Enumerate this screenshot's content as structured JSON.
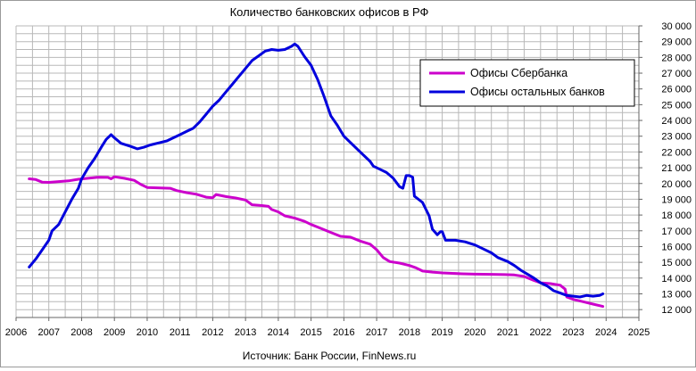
{
  "chart_data": {
    "type": "line",
    "title": "Количество банковских офисов в РФ",
    "source": "Источник: Банк России, FinNews.ru",
    "x_ticks": [
      "2006",
      "2007",
      "2008",
      "2009",
      "2010",
      "2011",
      "2012",
      "2013",
      "2014",
      "2015",
      "2016",
      "2017",
      "2018",
      "2019",
      "2020",
      "2021",
      "2022",
      "2023",
      "2024",
      "2025"
    ],
    "y_ticks": [
      "12 000",
      "13 000",
      "14 000",
      "15 000",
      "16 000",
      "17 000",
      "18 000",
      "19 000",
      "20 000",
      "21 000",
      "22 000",
      "23 000",
      "24 000",
      "25 000",
      "26 000",
      "27 000",
      "28 000",
      "29 000",
      "30 000"
    ],
    "xlim": [
      2006,
      2025
    ],
    "ylim": [
      11500,
      30000
    ],
    "grid": true,
    "legend_position": "top-right",
    "series": [
      {
        "name": "Офисы Сбербанка",
        "color": "#cc00cc",
        "points": [
          [
            2006.4,
            20300
          ],
          [
            2006.6,
            20250
          ],
          [
            2006.8,
            20080
          ],
          [
            2007.0,
            20070
          ],
          [
            2007.3,
            20120
          ],
          [
            2007.6,
            20170
          ],
          [
            2007.9,
            20270
          ],
          [
            2008.2,
            20330
          ],
          [
            2008.5,
            20400
          ],
          [
            2008.8,
            20390
          ],
          [
            2008.9,
            20300
          ],
          [
            2009.0,
            20430
          ],
          [
            2009.3,
            20330
          ],
          [
            2009.6,
            20200
          ],
          [
            2009.8,
            19950
          ],
          [
            2010.0,
            19750
          ],
          [
            2010.4,
            19720
          ],
          [
            2010.7,
            19700
          ],
          [
            2010.9,
            19550
          ],
          [
            2011.2,
            19420
          ],
          [
            2011.5,
            19320
          ],
          [
            2011.8,
            19130
          ],
          [
            2012.0,
            19100
          ],
          [
            2012.1,
            19300
          ],
          [
            2012.4,
            19170
          ],
          [
            2012.7,
            19080
          ],
          [
            2013.0,
            18950
          ],
          [
            2013.2,
            18650
          ],
          [
            2013.5,
            18600
          ],
          [
            2013.7,
            18550
          ],
          [
            2013.8,
            18350
          ],
          [
            2014.0,
            18200
          ],
          [
            2014.2,
            17950
          ],
          [
            2014.5,
            17800
          ],
          [
            2014.8,
            17600
          ],
          [
            2015.0,
            17400
          ],
          [
            2015.3,
            17150
          ],
          [
            2015.6,
            16900
          ],
          [
            2015.9,
            16650
          ],
          [
            2016.2,
            16600
          ],
          [
            2016.5,
            16350
          ],
          [
            2016.8,
            16150
          ],
          [
            2017.0,
            15800
          ],
          [
            2017.2,
            15300
          ],
          [
            2017.4,
            15050
          ],
          [
            2017.7,
            14950
          ],
          [
            2018.0,
            14800
          ],
          [
            2018.2,
            14650
          ],
          [
            2018.4,
            14450
          ],
          [
            2018.7,
            14380
          ],
          [
            2019.0,
            14330
          ],
          [
            2019.3,
            14300
          ],
          [
            2019.6,
            14270
          ],
          [
            2020.0,
            14250
          ],
          [
            2020.5,
            14240
          ],
          [
            2020.9,
            14220
          ],
          [
            2021.2,
            14200
          ],
          [
            2021.5,
            14100
          ],
          [
            2021.8,
            13850
          ],
          [
            2022.0,
            13700
          ],
          [
            2022.3,
            13650
          ],
          [
            2022.6,
            13550
          ],
          [
            2022.75,
            13300
          ],
          [
            2022.8,
            12800
          ],
          [
            2023.0,
            12650
          ],
          [
            2023.3,
            12500
          ],
          [
            2023.6,
            12350
          ],
          [
            2023.9,
            12200
          ]
        ]
      },
      {
        "name": "Офисы остальных банков",
        "color": "#0000dd",
        "points": [
          [
            2006.4,
            14700
          ],
          [
            2006.6,
            15200
          ],
          [
            2006.8,
            15800
          ],
          [
            2007.0,
            16400
          ],
          [
            2007.1,
            17000
          ],
          [
            2007.3,
            17400
          ],
          [
            2007.5,
            18200
          ],
          [
            2007.7,
            19000
          ],
          [
            2007.9,
            19700
          ],
          [
            2008.0,
            20300
          ],
          [
            2008.2,
            21000
          ],
          [
            2008.4,
            21600
          ],
          [
            2008.6,
            22300
          ],
          [
            2008.75,
            22800
          ],
          [
            2008.9,
            23100
          ],
          [
            2009.0,
            22900
          ],
          [
            2009.2,
            22550
          ],
          [
            2009.5,
            22350
          ],
          [
            2009.7,
            22200
          ],
          [
            2009.9,
            22300
          ],
          [
            2010.1,
            22450
          ],
          [
            2010.4,
            22600
          ],
          [
            2010.6,
            22700
          ],
          [
            2010.8,
            22900
          ],
          [
            2011.0,
            23100
          ],
          [
            2011.2,
            23300
          ],
          [
            2011.4,
            23500
          ],
          [
            2011.6,
            23900
          ],
          [
            2011.8,
            24400
          ],
          [
            2012.0,
            24900
          ],
          [
            2012.2,
            25300
          ],
          [
            2012.4,
            25800
          ],
          [
            2012.6,
            26300
          ],
          [
            2012.8,
            26800
          ],
          [
            2013.0,
            27300
          ],
          [
            2013.2,
            27800
          ],
          [
            2013.4,
            28100
          ],
          [
            2013.6,
            28400
          ],
          [
            2013.8,
            28500
          ],
          [
            2014.0,
            28450
          ],
          [
            2014.2,
            28500
          ],
          [
            2014.4,
            28700
          ],
          [
            2014.5,
            28850
          ],
          [
            2014.6,
            28700
          ],
          [
            2014.8,
            28050
          ],
          [
            2015.0,
            27500
          ],
          [
            2015.2,
            26600
          ],
          [
            2015.4,
            25500
          ],
          [
            2015.6,
            24300
          ],
          [
            2015.8,
            23700
          ],
          [
            2016.0,
            23000
          ],
          [
            2016.2,
            22600
          ],
          [
            2016.5,
            22000
          ],
          [
            2016.8,
            21400
          ],
          [
            2016.9,
            21100
          ],
          [
            2017.1,
            20900
          ],
          [
            2017.3,
            20700
          ],
          [
            2017.5,
            20350
          ],
          [
            2017.7,
            19800
          ],
          [
            2017.8,
            19700
          ],
          [
            2017.9,
            20500
          ],
          [
            2018.0,
            20500
          ],
          [
            2018.1,
            20400
          ],
          [
            2018.15,
            19200
          ],
          [
            2018.4,
            18800
          ],
          [
            2018.6,
            17950
          ],
          [
            2018.7,
            17100
          ],
          [
            2018.85,
            16750
          ],
          [
            2018.95,
            16950
          ],
          [
            2019.0,
            16950
          ],
          [
            2019.1,
            16400
          ],
          [
            2019.4,
            16400
          ],
          [
            2019.7,
            16300
          ],
          [
            2020.0,
            16100
          ],
          [
            2020.2,
            15900
          ],
          [
            2020.5,
            15600
          ],
          [
            2020.7,
            15300
          ],
          [
            2021.0,
            15050
          ],
          [
            2021.2,
            14800
          ],
          [
            2021.4,
            14500
          ],
          [
            2021.6,
            14250
          ],
          [
            2021.8,
            14000
          ],
          [
            2022.0,
            13700
          ],
          [
            2022.2,
            13500
          ],
          [
            2022.4,
            13200
          ],
          [
            2022.6,
            13050
          ],
          [
            2022.8,
            12900
          ],
          [
            2023.0,
            12850
          ],
          [
            2023.2,
            12800
          ],
          [
            2023.4,
            12900
          ],
          [
            2023.6,
            12850
          ],
          [
            2023.8,
            12900
          ],
          [
            2023.9,
            13000
          ]
        ]
      }
    ]
  }
}
